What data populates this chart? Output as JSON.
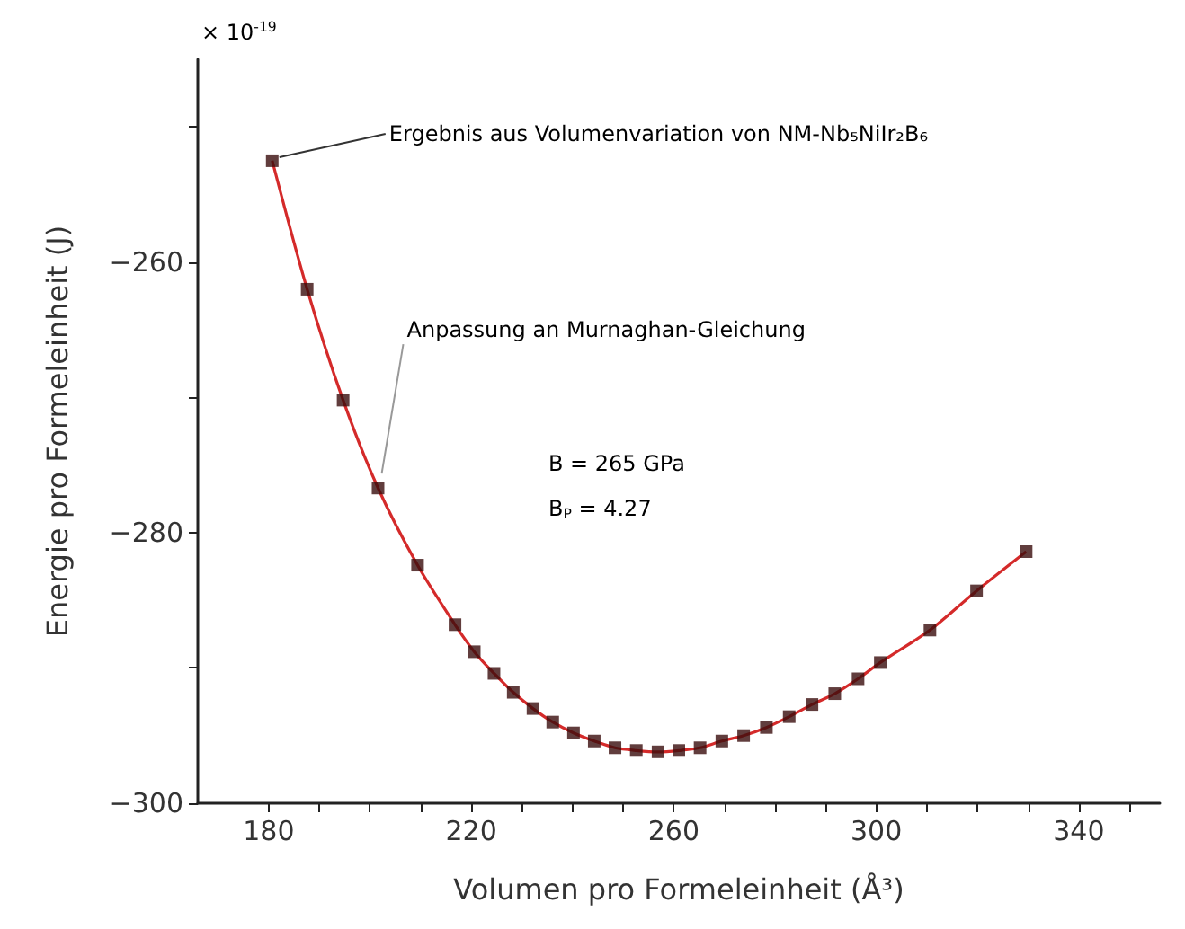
{
  "chart_data": {
    "type": "scatter",
    "xlabel": "Volumen pro Formeleinheit (Å³)",
    "ylabel": "Energie pro Formeleinheit (J)",
    "xlim": [
      166,
      356
    ],
    "ylim": [
      -300,
      -245
    ],
    "xticks": [
      180,
      {
        "value": 190,
        "label": null
      },
      {
        "value": 200,
        "label": null
      },
      {
        "value": 210,
        "label": null
      },
      220,
      {
        "value": 230,
        "label": null
      },
      {
        "value": 240,
        "label": null
      },
      {
        "value": 250,
        "label": null
      },
      260,
      {
        "value": 270,
        "label": null
      },
      {
        "value": 280,
        "label": null
      },
      {
        "value": 290,
        "label": null
      },
      300,
      {
        "value": 310,
        "label": null
      },
      {
        "value": 320,
        "label": null
      },
      {
        "value": 330,
        "label": null
      },
      340,
      {
        "value": 350,
        "label": null
      }
    ],
    "yticks": [
      {
        "value": -300,
        "label": "−300"
      },
      {
        "value": -290,
        "label": null
      },
      {
        "value": -280,
        "label": "−280"
      },
      {
        "value": -270,
        "label": null
      },
      {
        "value": -260,
        "label": "−260"
      },
      {
        "value": -250,
        "label": null
      }
    ],
    "series": [
      {
        "marker": "square",
        "color": "#3a0c0c",
        "x": [
          180.7,
          187.6,
          194.7,
          201.6,
          209.4,
          216.8,
          220.6,
          224.5,
          228.3,
          232.2,
          236.1,
          240.2,
          244.3,
          248.4,
          252.6,
          256.9,
          261,
          265.2,
          269.5,
          273.8,
          278.3,
          282.8,
          287.3,
          291.8,
          296.4,
          300.8,
          310.6,
          319.8,
          329.6
        ],
        "values": [
          -252.5,
          -262.0,
          -270.2,
          -276.7,
          -282.4,
          -286.8,
          -288.8,
          -290.4,
          -291.8,
          -293.0,
          -294.0,
          -294.8,
          -295.4,
          -295.9,
          -296.1,
          -296.2,
          -296.1,
          -295.9,
          -295.4,
          -295.0,
          -294.4,
          -293.6,
          -292.7,
          -291.9,
          -290.8,
          -289.6,
          -287.2,
          -284.3,
          -281.4
        ]
      },
      {
        "type": "line",
        "marker": "none",
        "color": "#d42a2a",
        "x": [
          180.7,
          187.6,
          194.7,
          201.6,
          209.4,
          216.8,
          220.6,
          224.5,
          228.3,
          232.2,
          236.1,
          240.2,
          244.3,
          248.4,
          252.6,
          256.9,
          261,
          265.2,
          269.5,
          273.8,
          278.3,
          282.8,
          287.3,
          291.8,
          296.4,
          300.8,
          310.6,
          319.8,
          329.6
        ],
        "values": [
          -252.5,
          -262.0,
          -270.2,
          -276.7,
          -282.4,
          -286.8,
          -288.8,
          -290.4,
          -291.8,
          -293.0,
          -294.0,
          -294.8,
          -295.4,
          -295.9,
          -296.1,
          -296.2,
          -296.1,
          -295.9,
          -295.4,
          -295.0,
          -294.4,
          -293.6,
          -292.7,
          -291.9,
          -290.8,
          -289.6,
          -287.2,
          -284.3,
          -281.4
        ]
      }
    ],
    "annotations": [
      {
        "text": "Ergebnis aus Volumenvariation von NM-Nb₅NiIr₂B₆",
        "x": 180.7,
        "y": -252.5
      },
      {
        "text": "Anpassung an Murnaghan-Gleichung",
        "x": 200.9,
        "y": -275.9
      },
      "× 10$^{-19}$",
      "B = 265 GPa",
      "B$_{P}$ = 4.27"
    ]
  }
}
